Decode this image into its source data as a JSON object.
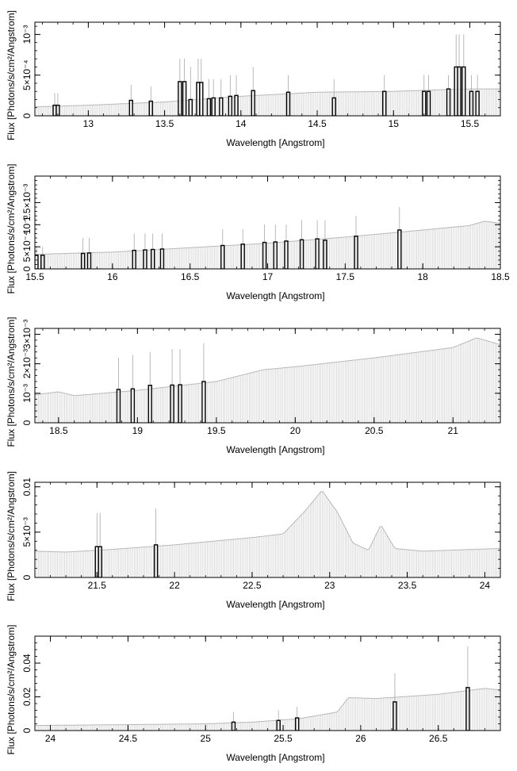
{
  "chart_data": [
    {
      "type": "line",
      "xlabel": "Wavelength [Angstrom]",
      "ylabel": "Flux [Photons/s/cm²/Angstrom]",
      "xlim": [
        12.65,
        15.7
      ],
      "ylim": [
        0,
        0.00115
      ],
      "x_ticks": [
        {
          "value": 13,
          "label": "13"
        },
        {
          "value": 13.5,
          "label": "13.5"
        },
        {
          "value": 14,
          "label": "14"
        },
        {
          "value": 14.5,
          "label": "14.5"
        },
        {
          "value": 15,
          "label": "15"
        },
        {
          "value": 15.5,
          "label": "15.5"
        }
      ],
      "y_ticks": [
        {
          "value": 0,
          "label": "0"
        },
        {
          "value": 0.0005,
          "label": "5×10⁻⁴"
        },
        {
          "value": 0.001,
          "label": "10⁻³"
        }
      ],
      "model": {
        "x": [
          12.65,
          13.0,
          13.5,
          14.0,
          14.5,
          15.0,
          15.3,
          15.5,
          15.7
        ],
        "y": [
          0.00011,
          0.00013,
          0.00017,
          0.00024,
          0.00029,
          0.0003,
          0.00032,
          0.00033,
          0.00033
        ]
      },
      "lines": [
        {
          "x": 12.78,
          "y": 0.00013,
          "err": 0.00028
        },
        {
          "x": 12.8,
          "y": 0.00013,
          "err": 0.00028
        },
        {
          "x": 13.28,
          "y": 0.00019,
          "err": 0.00038
        },
        {
          "x": 13.41,
          "y": 0.00018,
          "err": 0.00036
        },
        {
          "x": 13.6,
          "y": 0.00042,
          "err": 0.0007
        },
        {
          "x": 13.63,
          "y": 0.00042,
          "err": 0.0007
        },
        {
          "x": 13.67,
          "y": 0.0002,
          "err": 0.0006
        },
        {
          "x": 13.72,
          "y": 0.00041,
          "err": 0.0007
        },
        {
          "x": 13.74,
          "y": 0.00041,
          "err": 0.0007
        },
        {
          "x": 13.79,
          "y": 0.00021,
          "err": 0.00045
        },
        {
          "x": 13.82,
          "y": 0.00022,
          "err": 0.00045
        },
        {
          "x": 13.87,
          "y": 0.00022,
          "err": 0.00045
        },
        {
          "x": 13.93,
          "y": 0.00024,
          "err": 0.0005
        },
        {
          "x": 13.97,
          "y": 0.00025,
          "err": 0.0005
        },
        {
          "x": 14.08,
          "y": 0.00031,
          "err": 0.0006
        },
        {
          "x": 14.31,
          "y": 0.00029,
          "err": 0.0005
        },
        {
          "x": 14.61,
          "y": 0.00022,
          "err": 0.00045
        },
        {
          "x": 14.94,
          "y": 0.0003,
          "err": 0.0005
        },
        {
          "x": 15.2,
          "y": 0.0003,
          "err": 0.0005
        },
        {
          "x": 15.23,
          "y": 0.0003,
          "err": 0.0005
        },
        {
          "x": 15.36,
          "y": 0.00033,
          "err": 0.0005
        },
        {
          "x": 15.41,
          "y": 0.0006,
          "err": 0.001
        },
        {
          "x": 15.43,
          "y": 0.0006,
          "err": 0.001
        },
        {
          "x": 15.46,
          "y": 0.0006,
          "err": 0.001
        },
        {
          "x": 15.51,
          "y": 0.0003,
          "err": 0.0005
        },
        {
          "x": 15.55,
          "y": 0.0003,
          "err": 0.0005
        }
      ]
    },
    {
      "type": "line",
      "xlabel": "Wavelength [Angstrom]",
      "ylabel": "Flux [Photons/s/cm²/Angstrom]",
      "xlim": [
        15.5,
        18.5
      ],
      "ylim": [
        0,
        0.0021
      ],
      "x_ticks": [
        {
          "value": 15.5,
          "label": "15.5"
        },
        {
          "value": 16,
          "label": "16"
        },
        {
          "value": 16.5,
          "label": "16.5"
        },
        {
          "value": 17,
          "label": "17"
        },
        {
          "value": 17.5,
          "label": "17.5"
        },
        {
          "value": 18,
          "label": "18"
        },
        {
          "value": 18.5,
          "label": "18.5"
        }
      ],
      "y_ticks": [
        {
          "value": 0,
          "label": "0"
        },
        {
          "value": 0.0005,
          "label": "5×10⁻⁴"
        },
        {
          "value": 0.001,
          "label": "10⁻³"
        },
        {
          "value": 0.0015,
          "label": "1.5×10⁻³"
        }
      ],
      "model": {
        "x": [
          15.5,
          16.0,
          16.5,
          17.0,
          17.5,
          18.0,
          18.3,
          18.4,
          18.5
        ],
        "y": [
          0.00033,
          0.00038,
          0.00048,
          0.00058,
          0.00072,
          0.00088,
          0.00098,
          0.00108,
          0.00103
        ]
      },
      "lines": [
        {
          "x": 15.51,
          "y": 0.00031,
          "err": 0.0005
        },
        {
          "x": 15.55,
          "y": 0.00031,
          "err": 0.0005
        },
        {
          "x": 15.81,
          "y": 0.00035,
          "err": 0.0007
        },
        {
          "x": 15.85,
          "y": 0.00036,
          "err": 0.0007
        },
        {
          "x": 16.14,
          "y": 0.00042,
          "err": 0.0008
        },
        {
          "x": 16.21,
          "y": 0.00043,
          "err": 0.0008
        },
        {
          "x": 16.26,
          "y": 0.00044,
          "err": 0.0008
        },
        {
          "x": 16.32,
          "y": 0.00045,
          "err": 0.0008
        },
        {
          "x": 16.71,
          "y": 0.00053,
          "err": 0.0009
        },
        {
          "x": 16.84,
          "y": 0.00056,
          "err": 0.0009
        },
        {
          "x": 16.98,
          "y": 0.0006,
          "err": 0.001
        },
        {
          "x": 17.05,
          "y": 0.00061,
          "err": 0.001
        },
        {
          "x": 17.12,
          "y": 0.00063,
          "err": 0.001
        },
        {
          "x": 17.22,
          "y": 0.00066,
          "err": 0.0011
        },
        {
          "x": 17.32,
          "y": 0.00068,
          "err": 0.0011
        },
        {
          "x": 17.37,
          "y": 0.00065,
          "err": 0.0011
        },
        {
          "x": 17.57,
          "y": 0.00074,
          "err": 0.0012
        },
        {
          "x": 17.85,
          "y": 0.00088,
          "err": 0.0014
        }
      ]
    },
    {
      "type": "line",
      "xlabel": "Wavelength [Angstrom]",
      "ylabel": "Flux [Photons/s/cm²/Angstrom]",
      "xlim": [
        18.35,
        21.3
      ],
      "ylim": [
        0,
        0.0032
      ],
      "x_ticks": [
        {
          "value": 18.5,
          "label": "18.5"
        },
        {
          "value": 19,
          "label": "19"
        },
        {
          "value": 19.5,
          "label": "19.5"
        },
        {
          "value": 20,
          "label": "20"
        },
        {
          "value": 20.5,
          "label": "20.5"
        },
        {
          "value": 21,
          "label": "21"
        }
      ],
      "y_ticks": [
        {
          "value": 0,
          "label": "0"
        },
        {
          "value": 0.001,
          "label": "10⁻³"
        },
        {
          "value": 0.002,
          "label": "2×10⁻³"
        },
        {
          "value": 0.003,
          "label": "3×10⁻³"
        }
      ],
      "model": {
        "x": [
          18.35,
          18.5,
          18.6,
          19.0,
          19.5,
          19.8,
          20.0,
          20.5,
          21.0,
          21.15,
          21.3
        ],
        "y": [
          0.00095,
          0.00105,
          0.00092,
          0.0011,
          0.0014,
          0.0018,
          0.0019,
          0.0022,
          0.00255,
          0.00288,
          0.00265
        ]
      },
      "lines": [
        {
          "x": 18.88,
          "y": 0.00113,
          "err": 0.0022
        },
        {
          "x": 18.97,
          "y": 0.00115,
          "err": 0.0023
        },
        {
          "x": 19.08,
          "y": 0.00127,
          "err": 0.0024
        },
        {
          "x": 19.22,
          "y": 0.00128,
          "err": 0.0025
        },
        {
          "x": 19.27,
          "y": 0.00129,
          "err": 0.0025
        },
        {
          "x": 19.42,
          "y": 0.0014,
          "err": 0.0027
        }
      ]
    },
    {
      "type": "line",
      "xlabel": "Wavelength [Angstrom]",
      "ylabel": "Flux [Photons/s/cm²/Angstrom]",
      "xlim": [
        21.1,
        24.1
      ],
      "ylim": [
        0,
        0.0105
      ],
      "x_ticks": [
        {
          "value": 21.5,
          "label": "21.5"
        },
        {
          "value": 22,
          "label": "22"
        },
        {
          "value": 22.5,
          "label": "22.5"
        },
        {
          "value": 23,
          "label": "23"
        },
        {
          "value": 23.5,
          "label": "23.5"
        },
        {
          "value": 24,
          "label": "24"
        }
      ],
      "y_ticks": [
        {
          "value": 0,
          "label": "0"
        },
        {
          "value": 0.005,
          "label": "5×10⁻³"
        },
        {
          "value": 0.01,
          "label": "0.01"
        }
      ],
      "model": {
        "x": [
          21.1,
          21.3,
          21.6,
          22.0,
          22.5,
          22.7,
          22.85,
          22.95,
          23.05,
          23.15,
          23.25,
          23.33,
          23.42,
          23.6,
          24.1
        ],
        "y": [
          0.0029,
          0.0028,
          0.0031,
          0.0036,
          0.0044,
          0.0048,
          0.0075,
          0.0096,
          0.0072,
          0.0038,
          0.003,
          0.0058,
          0.0032,
          0.0029,
          0.0032
        ]
      },
      "lines": [
        {
          "x": 21.5,
          "y": 0.0034,
          "err": 0.0071
        },
        {
          "x": 21.52,
          "y": 0.0034,
          "err": 0.0071
        },
        {
          "x": 21.88,
          "y": 0.0036,
          "err": 0.0076
        }
      ]
    },
    {
      "type": "line",
      "xlabel": "Wavelength [Angstrom]",
      "ylabel": "Flux [Photons/s/cm²/Angstrom]",
      "xlim": [
        23.9,
        26.9
      ],
      "ylim": [
        0,
        0.056
      ],
      "x_ticks": [
        {
          "value": 24,
          "label": "24"
        },
        {
          "value": 24.5,
          "label": "24.5"
        },
        {
          "value": 25,
          "label": "25"
        },
        {
          "value": 25.5,
          "label": "25.5"
        },
        {
          "value": 26,
          "label": "26"
        },
        {
          "value": 26.5,
          "label": "26.5"
        }
      ],
      "y_ticks": [
        {
          "value": 0,
          "label": "0"
        },
        {
          "value": 0.02,
          "label": "0.02"
        },
        {
          "value": 0.04,
          "label": "0.04"
        }
      ],
      "model": {
        "x": [
          23.9,
          24.5,
          25.0,
          25.3,
          25.6,
          25.85,
          25.92,
          26.1,
          26.5,
          26.8,
          26.9
        ],
        "y": [
          0.003,
          0.0035,
          0.004,
          0.005,
          0.007,
          0.011,
          0.0195,
          0.019,
          0.0215,
          0.025,
          0.024
        ]
      },
      "lines": [
        {
          "x": 25.18,
          "y": 0.005,
          "err": 0.011
        },
        {
          "x": 25.47,
          "y": 0.006,
          "err": 0.012
        },
        {
          "x": 25.59,
          "y": 0.0075,
          "err": 0.014
        },
        {
          "x": 26.22,
          "y": 0.017,
          "err": 0.034
        },
        {
          "x": 26.69,
          "y": 0.0255,
          "err": 0.05
        }
      ]
    }
  ]
}
